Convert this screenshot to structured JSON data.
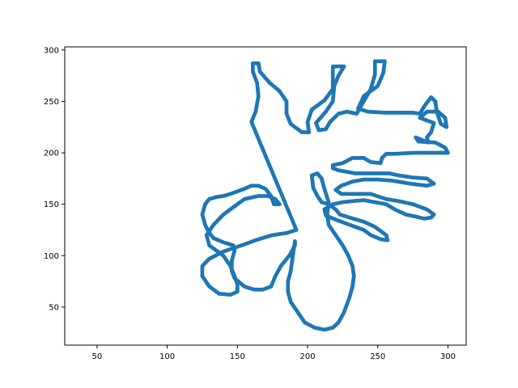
{
  "chart_data": {
    "type": "scatter",
    "title": "",
    "xlabel": "",
    "ylabel": "",
    "xlim": [
      27,
      313
    ],
    "ylim": [
      13,
      303
    ],
    "xticks": [
      50,
      100,
      150,
      200,
      250,
      300
    ],
    "yticks": [
      50,
      100,
      150,
      200,
      250,
      300
    ],
    "grid": false,
    "legend": "none",
    "color": "#1f77b4",
    "outline": [
      [
        160,
        230
      ],
      [
        163,
        240
      ],
      [
        165,
        255
      ],
      [
        164,
        268
      ],
      [
        161,
        279
      ],
      [
        161,
        287
      ],
      [
        165,
        287
      ],
      [
        166,
        279
      ],
      [
        173,
        268
      ],
      [
        180,
        260
      ],
      [
        185,
        250
      ],
      [
        185,
        238
      ],
      [
        188,
        228
      ],
      [
        196,
        220
      ],
      [
        201,
        220
      ],
      [
        200,
        230
      ],
      [
        203,
        242
      ],
      [
        212,
        251
      ],
      [
        218,
        262
      ],
      [
        218,
        274
      ],
      [
        218,
        284
      ],
      [
        226,
        284
      ],
      [
        222,
        275
      ],
      [
        219,
        265
      ],
      [
        218,
        250
      ],
      [
        213,
        240
      ],
      [
        206,
        229
      ],
      [
        208,
        222
      ],
      [
        213,
        223
      ],
      [
        216,
        230
      ],
      [
        222,
        238
      ],
      [
        228,
        240
      ],
      [
        235,
        238
      ],
      [
        240,
        250
      ],
      [
        245,
        262
      ],
      [
        248,
        276
      ],
      [
        248,
        289
      ],
      [
        255,
        289
      ],
      [
        254,
        278
      ],
      [
        250,
        265
      ],
      [
        240,
        255
      ],
      [
        236,
        243
      ],
      [
        243,
        240
      ],
      [
        255,
        239
      ],
      [
        275,
        239
      ],
      [
        280,
        238
      ],
      [
        283,
        245
      ],
      [
        288,
        254
      ],
      [
        291,
        250
      ],
      [
        292,
        240
      ],
      [
        295,
        228
      ],
      [
        299,
        225
      ],
      [
        298,
        234
      ],
      [
        293,
        240
      ],
      [
        285,
        240
      ],
      [
        280,
        234
      ],
      [
        290,
        229
      ],
      [
        288,
        220
      ],
      [
        285,
        215
      ],
      [
        286,
        210
      ],
      [
        277,
        215
      ],
      [
        279,
        211
      ],
      [
        291,
        210
      ],
      [
        298,
        205
      ],
      [
        300,
        200
      ],
      [
        293,
        200
      ],
      [
        276,
        200
      ],
      [
        262,
        199
      ],
      [
        256,
        199
      ],
      [
        253,
        195
      ],
      [
        252,
        190
      ],
      [
        245,
        191
      ],
      [
        240,
        195
      ],
      [
        232,
        195
      ],
      [
        225,
        190
      ],
      [
        218,
        188
      ],
      [
        218,
        185
      ],
      [
        222,
        183
      ],
      [
        234,
        180
      ],
      [
        250,
        180
      ],
      [
        258,
        180
      ],
      [
        265,
        178
      ],
      [
        275,
        176
      ],
      [
        285,
        175
      ],
      [
        290,
        170
      ],
      [
        285,
        168
      ],
      [
        273,
        170
      ],
      [
        260,
        173
      ],
      [
        250,
        174
      ],
      [
        240,
        174
      ],
      [
        232,
        172
      ],
      [
        224,
        168
      ],
      [
        220,
        164
      ],
      [
        224,
        160
      ],
      [
        235,
        160
      ],
      [
        245,
        160
      ],
      [
        256,
        155
      ],
      [
        265,
        153
      ],
      [
        275,
        150
      ],
      [
        285,
        145
      ],
      [
        290,
        140
      ],
      [
        288,
        137
      ],
      [
        283,
        136
      ],
      [
        277,
        138
      ],
      [
        270,
        140
      ],
      [
        262,
        145
      ],
      [
        256,
        150
      ],
      [
        248,
        152
      ],
      [
        240,
        154
      ],
      [
        232,
        153
      ],
      [
        225,
        152
      ],
      [
        218,
        150
      ],
      [
        212,
        145
      ],
      [
        213,
        139
      ],
      [
        220,
        135
      ],
      [
        230,
        130
      ],
      [
        240,
        125
      ],
      [
        245,
        120
      ],
      [
        252,
        116
      ],
      [
        257,
        115
      ],
      [
        256,
        120
      ],
      [
        248,
        128
      ],
      [
        240,
        133
      ],
      [
        230,
        137
      ],
      [
        223,
        140
      ],
      [
        220,
        145
      ],
      [
        215,
        150
      ],
      [
        210,
        152
      ],
      [
        207,
        158
      ],
      [
        204,
        166
      ],
      [
        203,
        178
      ],
      [
        207,
        180
      ],
      [
        210,
        175
      ],
      [
        212,
        165
      ],
      [
        215,
        152
      ],
      [
        214,
        140
      ],
      [
        215,
        130
      ],
      [
        220,
        120
      ],
      [
        225,
        110
      ],
      [
        229,
        100
      ],
      [
        232,
        90
      ],
      [
        233,
        80
      ],
      [
        232,
        70
      ],
      [
        230,
        60
      ],
      [
        226,
        45
      ],
      [
        222,
        35
      ],
      [
        218,
        30
      ],
      [
        212,
        28
      ],
      [
        205,
        30
      ],
      [
        198,
        35
      ],
      [
        193,
        45
      ],
      [
        188,
        55
      ],
      [
        186,
        65
      ],
      [
        186,
        75
      ],
      [
        188,
        85
      ],
      [
        189,
        95
      ],
      [
        190,
        105
      ],
      [
        191,
        114
      ],
      [
        191,
        110
      ],
      [
        187,
        100
      ],
      [
        181,
        90
      ],
      [
        177,
        80
      ],
      [
        174,
        70
      ],
      [
        168,
        67
      ],
      [
        162,
        67
      ],
      [
        155,
        70
      ],
      [
        148,
        78
      ],
      [
        146,
        85
      ],
      [
        146,
        95
      ],
      [
        148,
        105
      ],
      [
        147,
        110
      ],
      [
        140,
        113
      ],
      [
        133,
        117
      ],
      [
        130,
        122
      ],
      [
        127,
        130
      ],
      [
        125,
        140
      ],
      [
        127,
        150
      ],
      [
        130,
        155
      ],
      [
        135,
        157
      ],
      [
        140,
        158
      ],
      [
        145,
        160
      ],
      [
        155,
        165
      ],
      [
        160,
        168
      ],
      [
        165,
        168
      ],
      [
        170,
        165
      ],
      [
        174,
        158
      ],
      [
        176,
        150
      ],
      [
        180,
        150
      ],
      [
        177,
        155
      ],
      [
        172,
        158
      ],
      [
        165,
        158
      ],
      [
        155,
        155
      ],
      [
        150,
        150
      ],
      [
        140,
        140
      ],
      [
        133,
        130
      ],
      [
        128,
        120
      ],
      [
        130,
        110
      ],
      [
        135,
        105
      ],
      [
        140,
        100
      ],
      [
        145,
        90
      ],
      [
        148,
        80
      ],
      [
        150,
        72
      ],
      [
        150,
        65
      ],
      [
        145,
        62
      ],
      [
        137,
        63
      ],
      [
        130,
        70
      ],
      [
        125,
        80
      ],
      [
        125,
        90
      ],
      [
        130,
        97
      ],
      [
        140,
        104
      ],
      [
        153,
        110
      ],
      [
        163,
        115
      ],
      [
        170,
        118
      ],
      [
        175,
        120
      ],
      [
        185,
        122
      ],
      [
        192,
        125
      ]
    ]
  }
}
